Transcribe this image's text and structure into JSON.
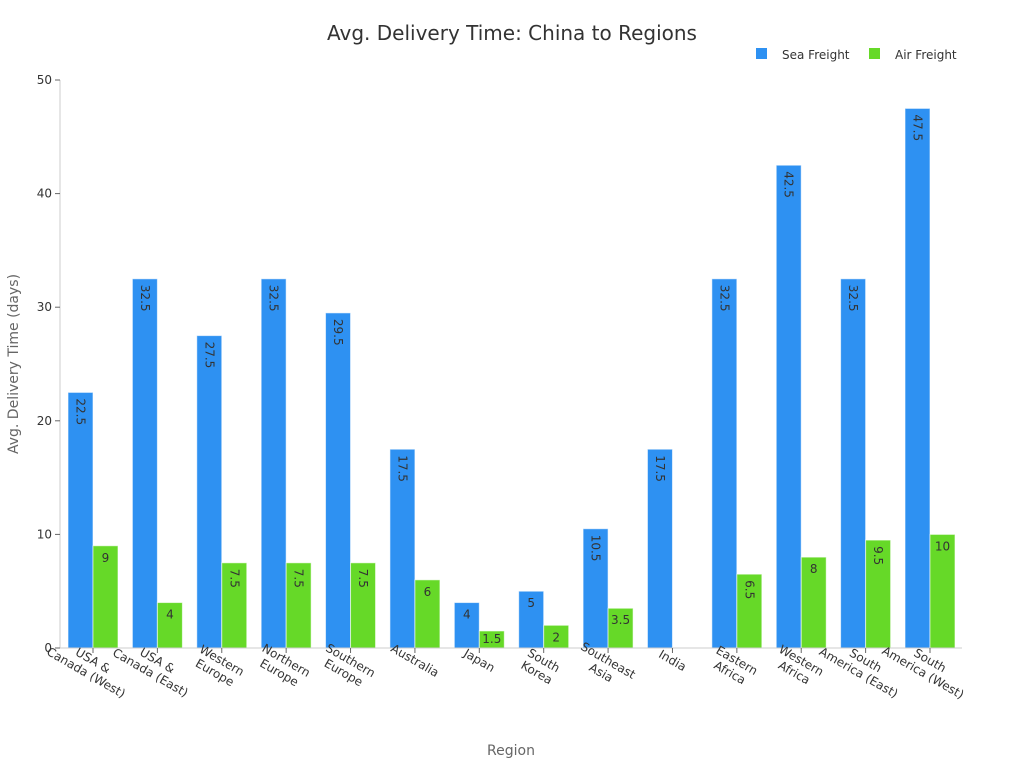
{
  "chart_data": {
    "type": "bar",
    "title": "Avg. Delivery Time: China to Regions",
    "xlabel": "Region",
    "ylabel": "Avg. Delivery Time (days)",
    "ylim": [
      0,
      50
    ],
    "yticks": [
      0,
      10,
      20,
      30,
      40,
      50
    ],
    "grid": false,
    "legend_position": "top-right",
    "categories": [
      "USA & Canada (West)",
      "USA & Canada (East)",
      "Western Europe",
      "Northern Europe",
      "Southern Europe",
      "Australia",
      "Japan",
      "South Korea",
      "Southeast Asia",
      "India",
      "Eastern Africa",
      "Western Africa",
      "South America (East)",
      "South America (West)"
    ],
    "category_lines": [
      [
        "USA &",
        "Canada (West)"
      ],
      [
        "USA &",
        "Canada (East)"
      ],
      [
        "Western",
        "Europe"
      ],
      [
        "Northern",
        "Europe"
      ],
      [
        "Southern",
        "Europe"
      ],
      [
        "Australia"
      ],
      [
        "Japan"
      ],
      [
        "South",
        "Korea"
      ],
      [
        "Southeast",
        "Asia"
      ],
      [
        "India"
      ],
      [
        "Eastern",
        "Africa"
      ],
      [
        "Western",
        "Africa"
      ],
      [
        "South",
        "America (East)"
      ],
      [
        "South",
        "America (West)"
      ]
    ],
    "series": [
      {
        "name": "Sea Freight",
        "color": "#2e91f2",
        "values": [
          22.5,
          32.5,
          27.5,
          32.5,
          29.5,
          17.5,
          4,
          5,
          10.5,
          17.5,
          32.5,
          42.5,
          32.5,
          47.5
        ]
      },
      {
        "name": "Air Freight",
        "color": "#66d928",
        "values": [
          9,
          4,
          7.5,
          7.5,
          7.5,
          6,
          1.5,
          2,
          3.5,
          null,
          6.5,
          8,
          9.5,
          10
        ]
      }
    ]
  }
}
